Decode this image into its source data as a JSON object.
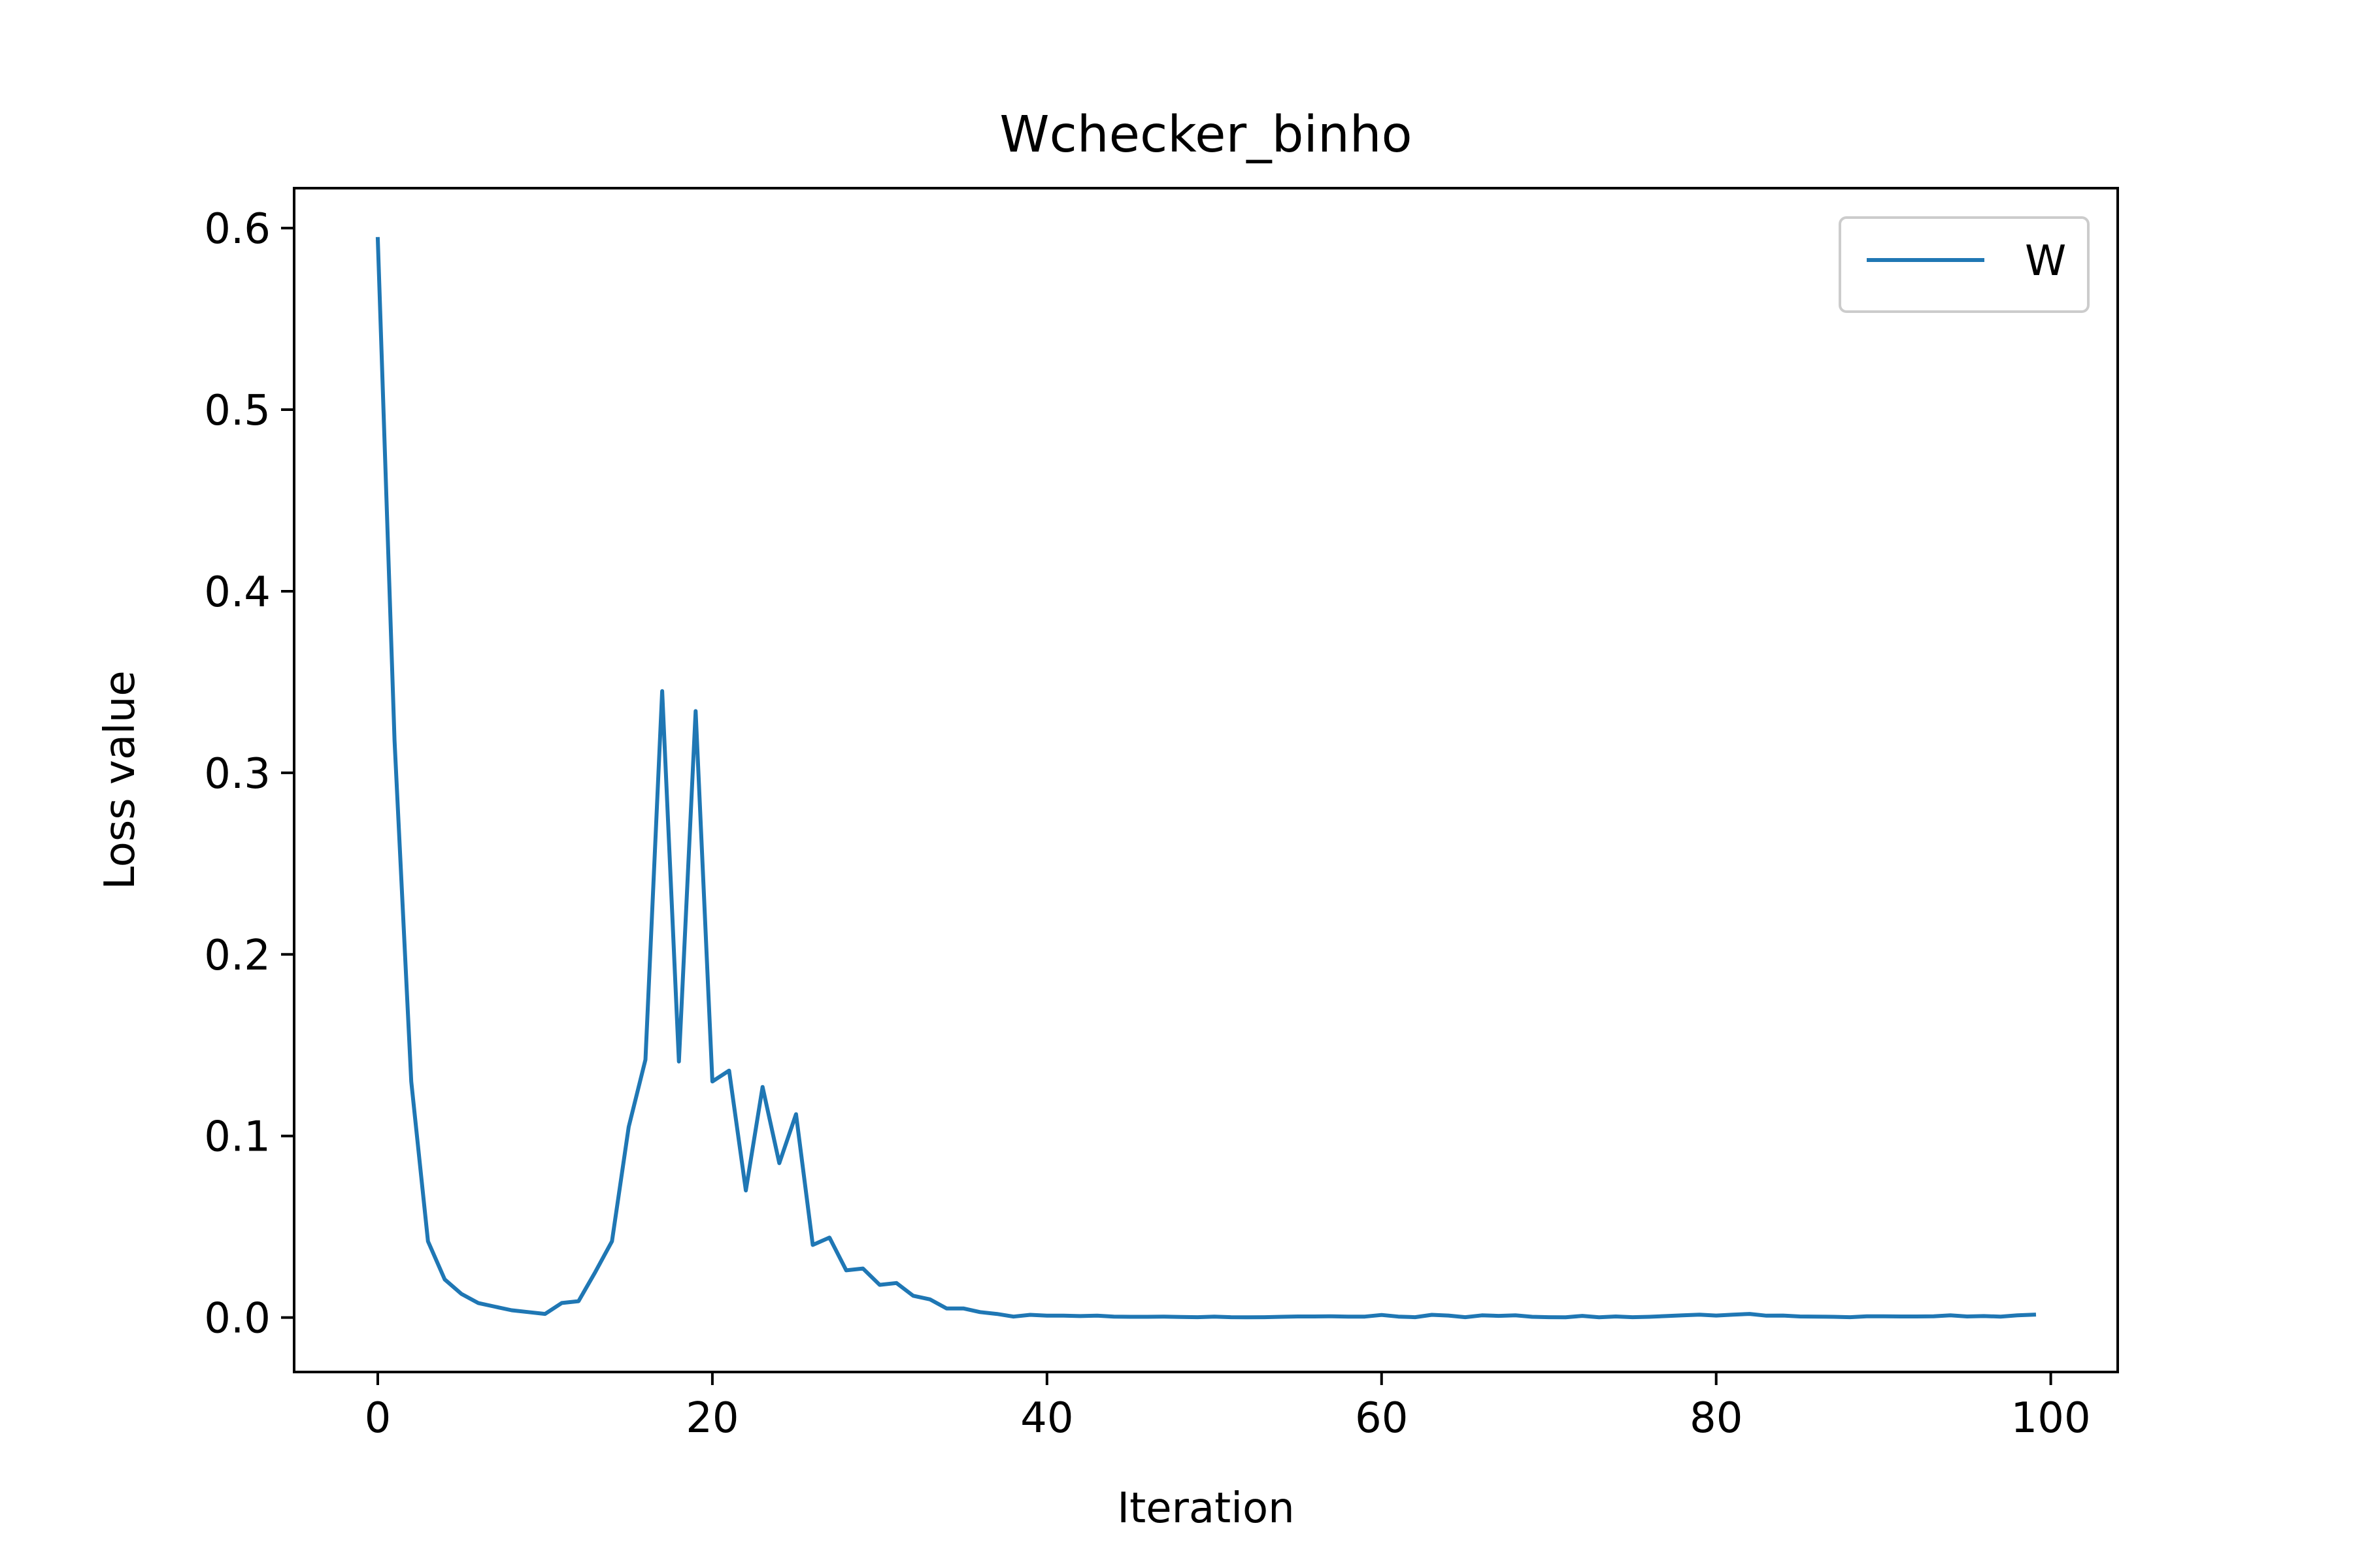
{
  "chart_data": {
    "type": "line",
    "title": "Wchecker_binho",
    "xlabel": "Iteration",
    "ylabel": "Loss value",
    "xlim": [
      -5,
      104
    ],
    "ylim": [
      -0.03,
      0.622
    ],
    "xticks": [
      0,
      20,
      40,
      60,
      80,
      100
    ],
    "yticks": [
      0.0,
      0.1,
      0.2,
      0.3,
      0.4,
      0.5,
      0.6
    ],
    "xtick_labels": [
      "0",
      "20",
      "40",
      "60",
      "80",
      "100"
    ],
    "ytick_labels": [
      "0.0",
      "0.1",
      "0.2",
      "0.3",
      "0.4",
      "0.5",
      "0.6"
    ],
    "grid": false,
    "legend_position": "top-right",
    "series": [
      {
        "name": "W",
        "color": "#1f77b4",
        "x": [
          0,
          1,
          2,
          3,
          4,
          5,
          6,
          7,
          8,
          9,
          10,
          11,
          12,
          13,
          14,
          15,
          16,
          17,
          18,
          19,
          20,
          21,
          22,
          23,
          24,
          25,
          26,
          27,
          28,
          29,
          30,
          31,
          32,
          33,
          34,
          35,
          36,
          37,
          38,
          39,
          40,
          41,
          42,
          43,
          44,
          45,
          46,
          47,
          48,
          49,
          50,
          51,
          52,
          53,
          54,
          55,
          56,
          57,
          58,
          59,
          60,
          61,
          62,
          63,
          64,
          65,
          66,
          67,
          68,
          69,
          70,
          71,
          72,
          73,
          74,
          75,
          76,
          77,
          78,
          79,
          80,
          81,
          82,
          83,
          84,
          85,
          86,
          87,
          88,
          89,
          90,
          91,
          92,
          93,
          94,
          95,
          96,
          97,
          98,
          99
        ],
        "values": [
          0.594,
          0.318,
          0.13,
          0.042,
          0.021,
          0.013,
          0.008,
          0.006,
          0.004,
          0.003,
          0.002,
          0.008,
          0.009,
          0.025,
          0.042,
          0.105,
          0.142,
          0.345,
          0.141,
          0.334,
          0.13,
          0.136,
          0.07,
          0.127,
          0.085,
          0.112,
          0.04,
          0.044,
          0.026,
          0.027,
          0.018,
          0.019,
          0.012,
          0.01,
          0.005,
          0.005,
          0.003,
          0.002,
          0.0005,
          0.0015,
          0.001,
          0.001,
          0.0008,
          0.001,
          0.0005,
          0.0004,
          0.0004,
          0.0005,
          0.0003,
          0.0002,
          0.0005,
          0.0002,
          0.0001,
          0.0002,
          0.0004,
          0.0006,
          0.0006,
          0.0007,
          0.0005,
          0.0005,
          0.0014,
          0.0005,
          0.0002,
          0.0015,
          0.0011,
          0.0002,
          0.0012,
          0.0009,
          0.0012,
          0.0004,
          0.0002,
          0.0001,
          0.0009,
          0.0001,
          0.0006,
          0.0002,
          0.0004,
          0.0008,
          0.0012,
          0.0016,
          0.0011,
          0.0016,
          0.002,
          0.001,
          0.0011,
          0.0006,
          0.0005,
          0.0004,
          0.0002,
          0.0007,
          0.0007,
          0.0006,
          0.0006,
          0.0007,
          0.0012,
          0.0006,
          0.0008,
          0.0005,
          0.0012,
          0.0016
        ]
      }
    ]
  }
}
